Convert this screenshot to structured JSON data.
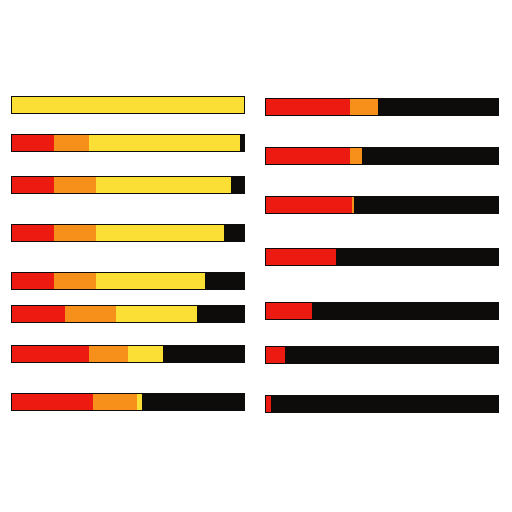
{
  "colors": {
    "red": "#ed1a12",
    "orange": "#f6901a",
    "yellow": "#fbdf34",
    "empty": "#0e0b0b",
    "background": "#ffffff"
  },
  "bar_sets": {
    "left": [
      {
        "red": 0.0,
        "orange": 0.0,
        "yellow": 1.0
      },
      {
        "red": 0.18,
        "orange": 0.15,
        "yellow": 0.65
      },
      {
        "red": 0.18,
        "orange": 0.18,
        "yellow": 0.58
      },
      {
        "red": 0.18,
        "orange": 0.18,
        "yellow": 0.55
      },
      {
        "red": 0.18,
        "orange": 0.18,
        "yellow": 0.47
      },
      {
        "red": 0.23,
        "orange": 0.22,
        "yellow": 0.35
      },
      {
        "red": 0.33,
        "orange": 0.17,
        "yellow": 0.15
      },
      {
        "red": 0.35,
        "orange": 0.19,
        "yellow": 0.02
      }
    ],
    "right": [
      {
        "red": 0.36,
        "orange": 0.12,
        "yellow": 0.0
      },
      {
        "red": 0.36,
        "orange": 0.05,
        "yellow": 0.0
      },
      {
        "red": 0.37,
        "orange": 0.01,
        "yellow": 0.0
      },
      {
        "red": 0.3,
        "orange": 0.0,
        "yellow": 0.0
      },
      {
        "red": 0.2,
        "orange": 0.0,
        "yellow": 0.0
      },
      {
        "red": 0.08,
        "orange": 0.0,
        "yellow": 0.0
      },
      {
        "red": 0.02,
        "orange": 0.0,
        "yellow": 0.0
      }
    ]
  }
}
